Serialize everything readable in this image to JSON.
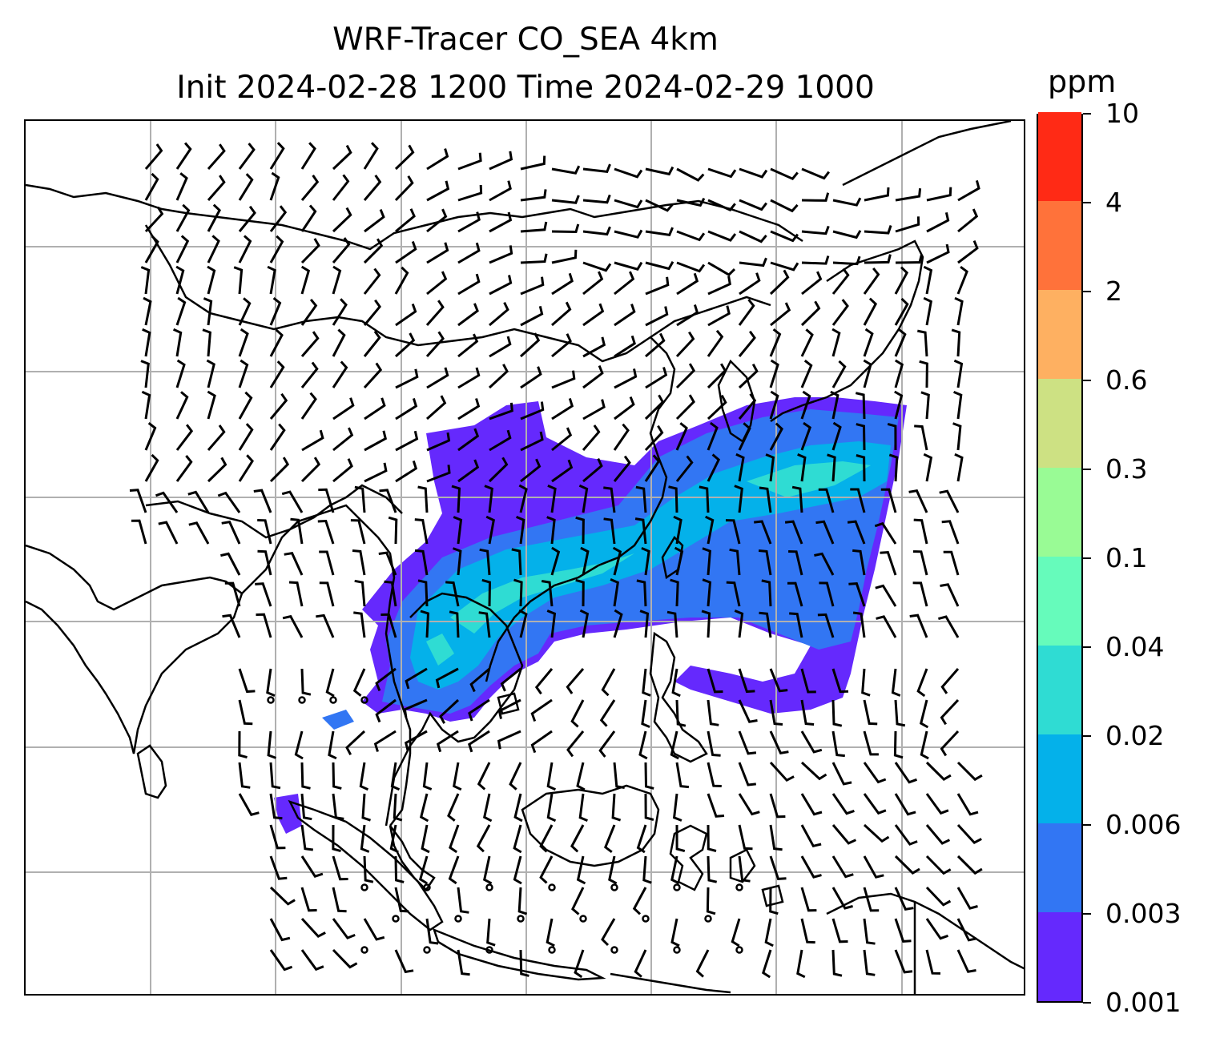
{
  "title": {
    "line1": "WRF-Tracer CO_SEA 4km",
    "line2": "Init 2024-02-28 1200 Time 2024-02-29 1000"
  },
  "colorbar": {
    "unit_label": "ppm",
    "levels": [
      "0.001",
      "0.003",
      "0.006",
      "0.02",
      "0.04",
      "0.1",
      "0.3",
      "0.6",
      "2",
      "4",
      "10"
    ],
    "colors": [
      "#6529fd",
      "#3276f3",
      "#04b1ea",
      "#2fdcd3",
      "#66fbbb",
      "#99fb95",
      "#cde183",
      "#feb061",
      "#ff723a",
      "#ff2a15"
    ]
  },
  "map": {
    "gridlines": true,
    "gridline_color": "#b0b0b0",
    "coastline_color": "#000000",
    "barb_color": "#000000",
    "features": [
      "coastlines",
      "gridlines",
      "wind-barbs",
      "co-tracer-concentration"
    ]
  }
}
